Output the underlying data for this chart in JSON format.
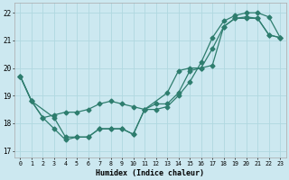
{
  "xlabel": "Humidex (Indice chaleur)",
  "bg_color": "#cce8f0",
  "line_color": "#2e7d6e",
  "grid_color": "#b0d8e0",
  "xlim": [
    -0.5,
    23.5
  ],
  "ylim": [
    16.75,
    22.35
  ],
  "xticks": [
    0,
    1,
    2,
    3,
    4,
    5,
    6,
    7,
    8,
    9,
    10,
    11,
    12,
    13,
    14,
    15,
    16,
    17,
    18,
    19,
    20,
    21,
    22,
    23
  ],
  "yticks": [
    17,
    18,
    19,
    20,
    21,
    22
  ],
  "line1_x": [
    0,
    1,
    2,
    3,
    4,
    5,
    6,
    7,
    8,
    9,
    10,
    11,
    12,
    13,
    14,
    15,
    16,
    17,
    18,
    19,
    20,
    21,
    22,
    23
  ],
  "line1_y": [
    19.7,
    18.8,
    18.2,
    17.8,
    17.4,
    17.5,
    17.5,
    17.8,
    17.8,
    17.8,
    17.6,
    18.5,
    18.7,
    18.7,
    19.1,
    19.9,
    20.0,
    20.1,
    21.5,
    21.8,
    21.85,
    21.8,
    21.2,
    21.1
  ],
  "line2_x": [
    0,
    1,
    2,
    3,
    4,
    5,
    6,
    7,
    8,
    9,
    10,
    11,
    12,
    13,
    14,
    15,
    16,
    17,
    18,
    19,
    20,
    21,
    22,
    23
  ],
  "line2_y": [
    19.7,
    18.8,
    18.2,
    18.3,
    18.4,
    18.4,
    18.5,
    18.7,
    18.8,
    18.7,
    18.6,
    18.5,
    18.5,
    18.6,
    19.0,
    19.5,
    20.2,
    21.1,
    21.7,
    21.9,
    22.0,
    22.0,
    21.85,
    21.1
  ],
  "line3_x": [
    0,
    1,
    3,
    4,
    5,
    6,
    7,
    8,
    9,
    10,
    11,
    13,
    14,
    15,
    16,
    17,
    18,
    19,
    20,
    21,
    22,
    23
  ],
  "line3_y": [
    19.7,
    18.8,
    18.2,
    17.5,
    17.5,
    17.5,
    17.8,
    17.8,
    17.8,
    17.6,
    18.5,
    19.1,
    19.9,
    20.0,
    20.0,
    20.7,
    21.5,
    21.8,
    21.8,
    21.8,
    21.2,
    21.1
  ]
}
